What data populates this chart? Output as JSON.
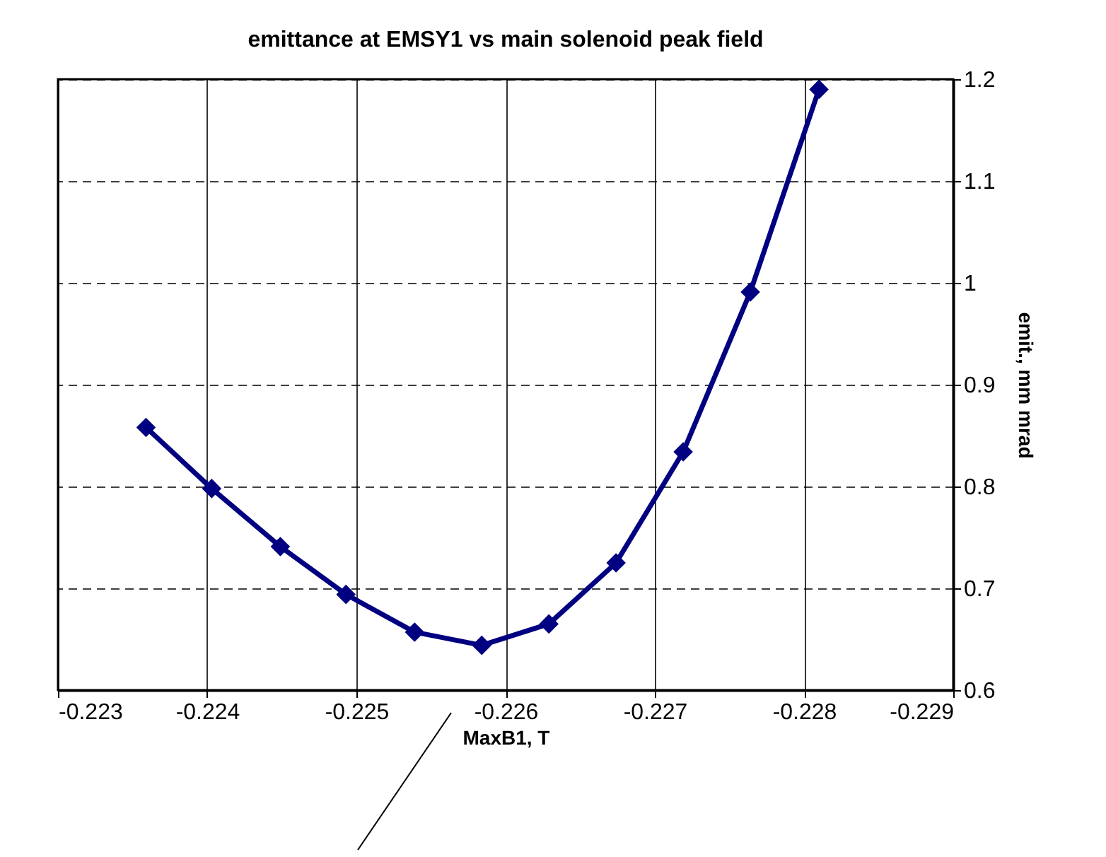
{
  "chart_data": {
    "type": "line",
    "title": "emittance at EMSY1 vs main solenoid peak field",
    "xlabel": "MaxB1, T",
    "ylabel": "emit., mm mrad",
    "x": [
      -0.22359,
      -0.22403,
      -0.22449,
      -0.22493,
      -0.22539,
      -0.22584,
      -0.22629,
      -0.22674,
      -0.22719,
      -0.22764,
      -0.2281
    ],
    "series": [
      {
        "color": "#000080",
        "values": [
          0.858,
          0.798,
          0.741,
          0.694,
          0.657,
          0.644,
          0.665,
          0.725,
          0.834,
          0.991,
          1.19
        ]
      }
    ],
    "xlim": [
      -0.223,
      -0.229
    ],
    "xticks": [
      -0.223,
      -0.224,
      -0.225,
      -0.226,
      -0.227,
      -0.228,
      -0.229
    ],
    "ylim": [
      0.6,
      1.2
    ],
    "yticks": [
      0.6,
      0.7,
      0.8,
      0.9,
      1,
      1.1,
      1.2
    ],
    "grid": true,
    "marker": "diamond",
    "line_style": "solid"
  }
}
